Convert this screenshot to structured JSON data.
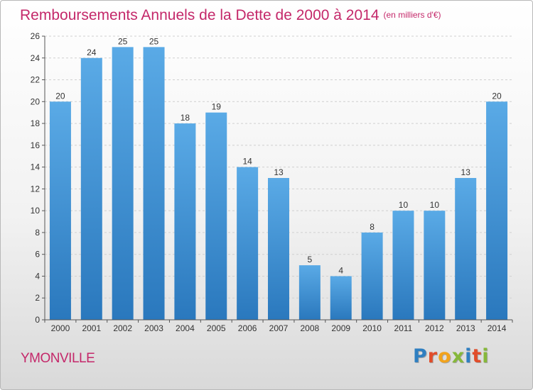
{
  "header": {
    "title": "Remboursements Annuels de la Dette de 2000 à 2014",
    "unit": "(en milliers d'€)"
  },
  "footer": {
    "commune": "YMONVILLE",
    "brand_letters": [
      {
        "ch": "P",
        "color": "#2f7fc1"
      },
      {
        "ch": "r",
        "color": "#e14d2a"
      },
      {
        "ch": "o",
        "color": "#f2a31c"
      },
      {
        "ch": "x",
        "color": "#86b83a"
      },
      {
        "ch": "i",
        "color": "#2f7fc1"
      },
      {
        "ch": "t",
        "color": "#e14d2a"
      },
      {
        "ch": "i",
        "color": "#86b83a"
      }
    ]
  },
  "colors": {
    "title": "#c4286a",
    "bar_top": "#5aaae6",
    "bar_bottom": "#2a78bd",
    "grid": "#d0d0d0",
    "axis": "#555555",
    "text": "#333333"
  },
  "chart_data": {
    "type": "bar",
    "categories": [
      "2000",
      "2001",
      "2002",
      "2003",
      "2004",
      "2005",
      "2006",
      "2007",
      "2008",
      "2009",
      "2010",
      "2011",
      "2012",
      "2013",
      "2014"
    ],
    "values": [
      20,
      24,
      25,
      25,
      18,
      19,
      14,
      13,
      5,
      4,
      8,
      10,
      10,
      13,
      20
    ],
    "data_labels": [
      "20",
      "24",
      "25",
      "25",
      "18",
      "19",
      "14",
      "13",
      "5",
      "4",
      "8",
      "10",
      "10",
      "13",
      "20"
    ],
    "yticks": [
      0,
      2,
      4,
      6,
      8,
      10,
      12,
      14,
      16,
      18,
      20,
      22,
      24,
      26
    ],
    "ylim": [
      0,
      26
    ],
    "grid": true,
    "legend": "none"
  }
}
